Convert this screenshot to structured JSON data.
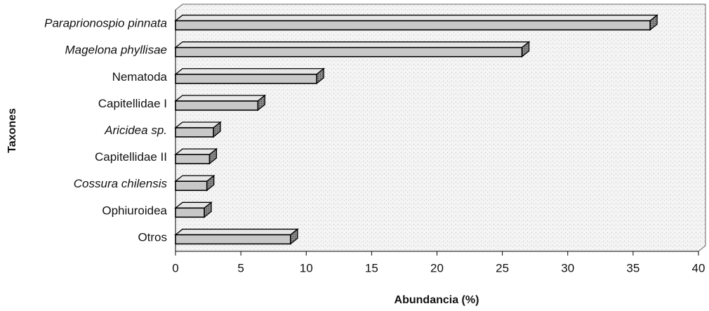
{
  "chart_data": {
    "type": "bar",
    "orientation": "horizontal",
    "x_label": "Abundancia (%)",
    "y_label": "Taxones",
    "categories": [
      "Paraprionospio pinnata",
      "Magelona phyllisae",
      "Nematoda",
      "Capitellidae I",
      "Aricidea sp.",
      "Capitellidae II",
      "Cossura chilensis",
      "Ophiuroidea",
      "Otros"
    ],
    "italic": [
      true,
      true,
      false,
      false,
      true,
      false,
      true,
      false,
      false
    ],
    "values": [
      36.3,
      26.5,
      10.8,
      6.3,
      2.9,
      2.6,
      2.4,
      2.2,
      8.8
    ],
    "color": "#c8c8c8",
    "xlim": [
      0,
      40
    ],
    "xticks": [
      0,
      5,
      10,
      15,
      20,
      25,
      30,
      35,
      40
    ]
  }
}
